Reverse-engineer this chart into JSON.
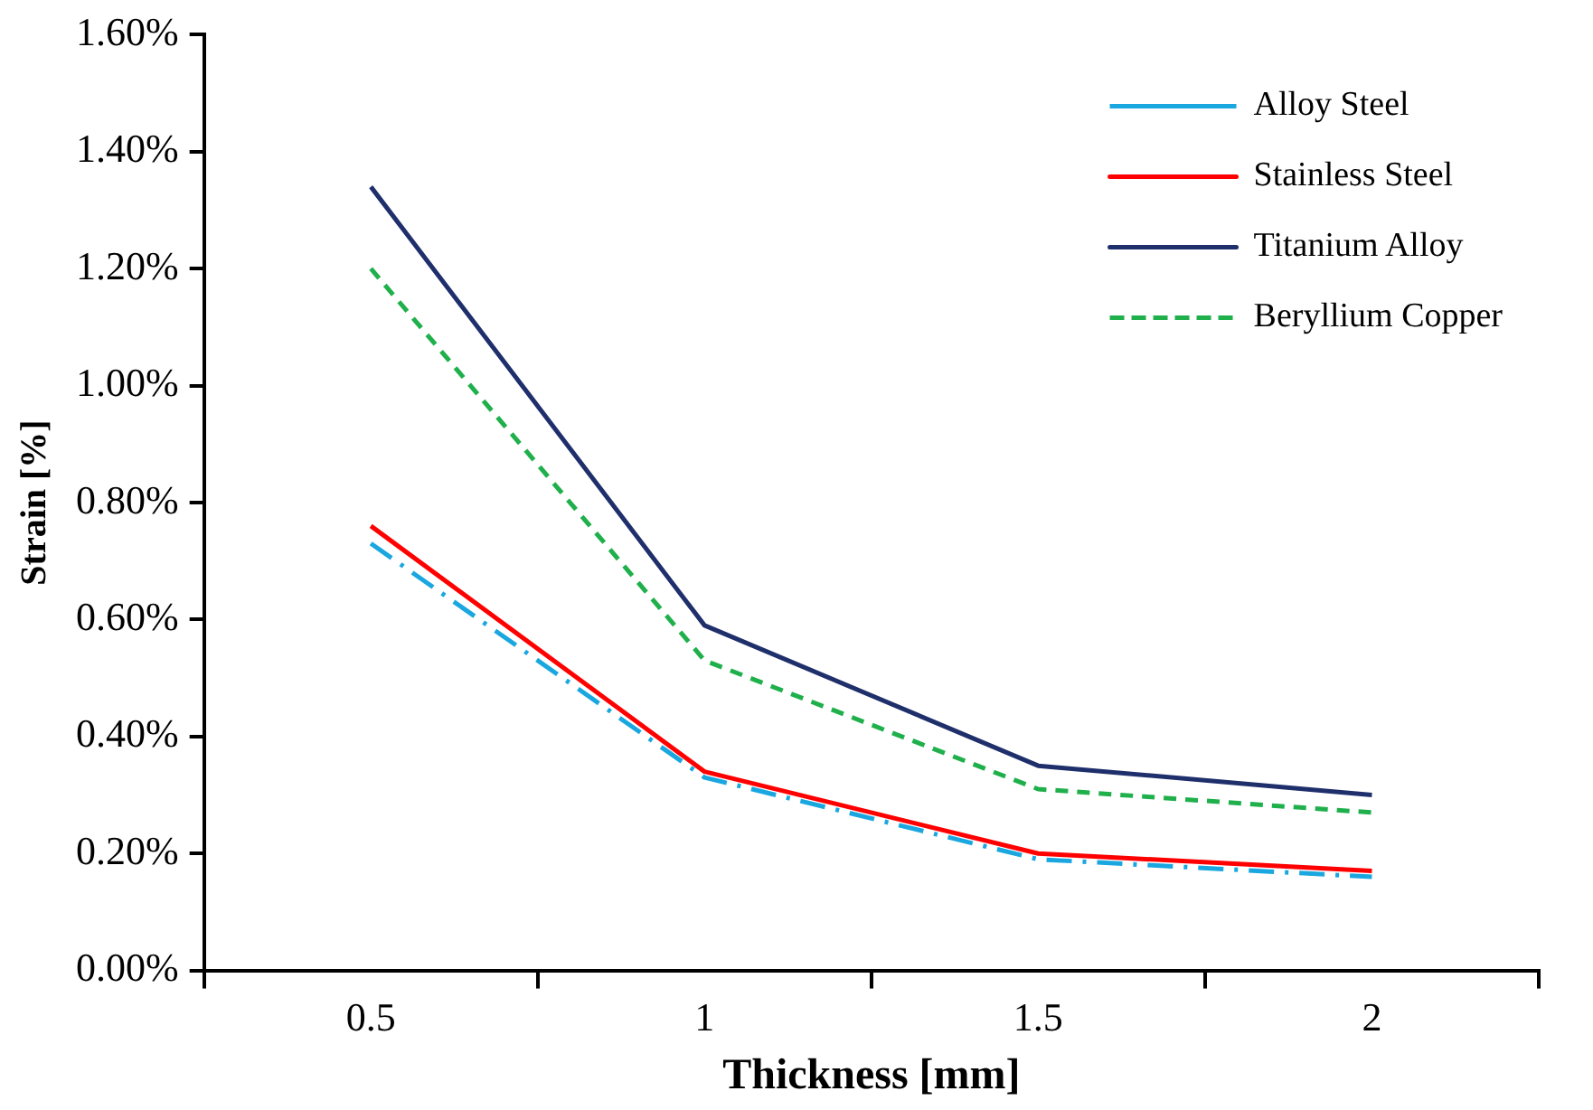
{
  "chart_data": {
    "type": "line",
    "xlabel": "Thickness [mm]",
    "ylabel": "Strain [%]",
    "categories": [
      "0.5",
      "1",
      "1.5",
      "2"
    ],
    "series": [
      {
        "name": "Alloy Steel",
        "color": "#1aa7e0",
        "line_style": "dashdot",
        "values": [
          0.73,
          0.33,
          0.19,
          0.16
        ]
      },
      {
        "name": "Stainless Steel",
        "color": "#ff0000",
        "line_style": "solid",
        "values": [
          0.76,
          0.34,
          0.2,
          0.17
        ]
      },
      {
        "name": "Titanium Alloy",
        "color": "#1f2f6b",
        "line_style": "solid",
        "values": [
          1.34,
          0.59,
          0.35,
          0.3
        ]
      },
      {
        "name": "Beryllium Copper",
        "color": "#1fb04c",
        "line_style": "dashed",
        "values": [
          1.2,
          0.53,
          0.31,
          0.27
        ]
      }
    ],
    "ylim": [
      0,
      1.6
    ],
    "yticks": [
      {
        "value": 0,
        "label": "0.00%"
      },
      {
        "value": 0.2,
        "label": "0.20%"
      },
      {
        "value": 0.4,
        "label": "0.40%"
      },
      {
        "value": 0.6,
        "label": "0.60%"
      },
      {
        "value": 0.8,
        "label": "0.80%"
      },
      {
        "value": 1.0,
        "label": "1.00%"
      },
      {
        "value": 1.2,
        "label": "1.20%"
      },
      {
        "value": 1.4,
        "label": "1.40%"
      },
      {
        "value": 1.6,
        "label": "1.60%"
      }
    ],
    "grid": false,
    "legend": "top right",
    "marker": "none"
  }
}
